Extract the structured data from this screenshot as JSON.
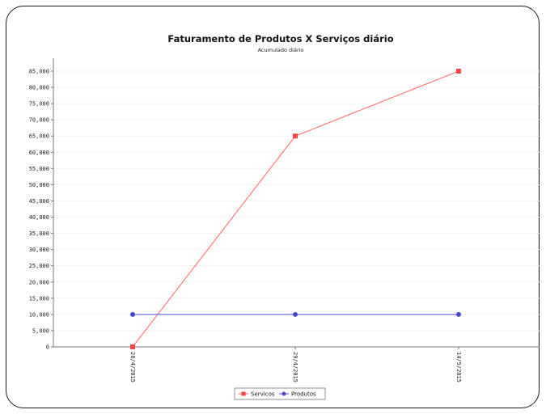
{
  "chart_data": {
    "type": "line",
    "title": "Faturamento de Produtos X Serviços diário",
    "subtitle": "Acumulado diário",
    "xlabel": "",
    "ylabel": "",
    "categories": [
      "28/4/2015",
      "29/4/2015",
      "14/5/2015"
    ],
    "ylim": [
      0,
      85000
    ],
    "ytick_step": 5000,
    "yticks": [
      "0",
      "5,000",
      "10,000",
      "15,000",
      "20,000",
      "25,000",
      "30,000",
      "35,000",
      "40,000",
      "45,000",
      "50,000",
      "55,000",
      "60,000",
      "65,000",
      "70,000",
      "75,000",
      "80,000",
      "85,000"
    ],
    "grid": true,
    "legend_position": "bottom",
    "series": [
      {
        "name": "Servicos",
        "values": [
          0,
          65000,
          85000
        ],
        "color": "#ff7a7a",
        "marker": "square"
      },
      {
        "name": "Produtos",
        "values": [
          10000,
          10000,
          10000
        ],
        "color": "#6f6fe6",
        "marker": "circle"
      }
    ]
  }
}
